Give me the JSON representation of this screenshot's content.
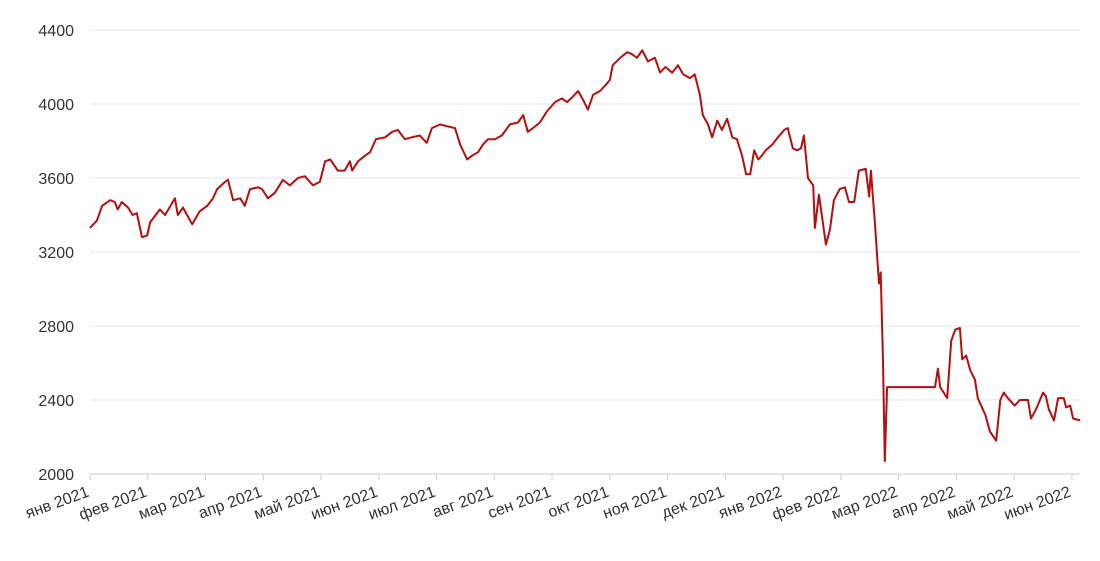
{
  "chart_data": {
    "type": "line",
    "xlim": [
      0,
      17.14
    ],
    "xticks": [
      {
        "value": 0,
        "label": "янв 2021"
      },
      {
        "value": 1,
        "label": "фев 2021"
      },
      {
        "value": 2,
        "label": "мар 2021"
      },
      {
        "value": 3,
        "label": "апр 2021"
      },
      {
        "value": 4,
        "label": "май 2021"
      },
      {
        "value": 5,
        "label": "июн 2021"
      },
      {
        "value": 6,
        "label": "июл 2021"
      },
      {
        "value": 7,
        "label": "авг 2021"
      },
      {
        "value": 8,
        "label": "сен 2021"
      },
      {
        "value": 9,
        "label": "окт 2021"
      },
      {
        "value": 10,
        "label": "ноя 2021"
      },
      {
        "value": 11,
        "label": "дек 2021"
      },
      {
        "value": 12,
        "label": "янв 2022"
      },
      {
        "value": 13,
        "label": "фев 2022"
      },
      {
        "value": 14,
        "label": "мар 2022"
      },
      {
        "value": 15,
        "label": "апр 2022"
      },
      {
        "value": 16,
        "label": "май 2022"
      },
      {
        "value": 17,
        "label": "июн 2022"
      }
    ],
    "ylim": [
      2000,
      4400
    ],
    "yticks": [
      2000,
      2400,
      2800,
      3200,
      3600,
      4000,
      4400
    ],
    "grid": true,
    "series": [
      {
        "color": "#b30f0f",
        "x": [
          0,
          0.12,
          0.21,
          0.35,
          0.43,
          0.48,
          0.55,
          0.66,
          0.74,
          0.81,
          0.9,
          0.99,
          1.04,
          1.21,
          1.3,
          1.47,
          1.52,
          1.61,
          1.77,
          1.9,
          2.03,
          2.13,
          2.2,
          2.34,
          2.39,
          2.48,
          2.6,
          2.68,
          2.77,
          2.91,
          2.98,
          3.08,
          3.2,
          3.34,
          3.46,
          3.6,
          3.72,
          3.86,
          3.98,
          4.07,
          4.16,
          4.29,
          4.41,
          4.5,
          4.54,
          4.64,
          4.76,
          4.85,
          4.95,
          5.11,
          5.23,
          5.33,
          5.45,
          5.57,
          5.71,
          5.83,
          5.92,
          6.06,
          6.18,
          6.32,
          6.41,
          6.53,
          6.61,
          6.72,
          6.8,
          6.89,
          7.01,
          7.13,
          7.27,
          7.41,
          7.5,
          7.58,
          7.67,
          7.79,
          7.91,
          8.05,
          8.17,
          8.26,
          8.36,
          8.45,
          8.54,
          8.62,
          8.71,
          8.83,
          8.92,
          9.0,
          9.05,
          9.18,
          9.3,
          9.38,
          9.47,
          9.56,
          9.66,
          9.78,
          9.87,
          9.96,
          10.08,
          10.18,
          10.27,
          10.39,
          10.47,
          10.56,
          10.61,
          10.7,
          10.77,
          10.86,
          10.94,
          11.03,
          11.12,
          11.2,
          11.29,
          11.36,
          11.43,
          11.5,
          11.57,
          11.63,
          11.7,
          11.81,
          11.91,
          12.02,
          12.08,
          12.17,
          12.24,
          12.31,
          12.36,
          12.43,
          12.52,
          12.55,
          12.62,
          12.67,
          12.74,
          12.81,
          12.88,
          12.98,
          13.07,
          13.14,
          13.23,
          13.31,
          13.43,
          13.49,
          13.52,
          13.59,
          13.66,
          13.69,
          13.73,
          13.76,
          13.8,
          14.63,
          14.68,
          14.72,
          14.84,
          14.91,
          14.98,
          15.06,
          15.1,
          15.17,
          15.24,
          15.32,
          15.37,
          15.5,
          15.58,
          15.69,
          15.76,
          15.82,
          15.89,
          16.01,
          16.1,
          16.24,
          16.29,
          16.38,
          16.5,
          16.55,
          16.6,
          16.69,
          16.76,
          16.86,
          16.9,
          16.97,
          17.02,
          17.14
        ],
        "values": [
          3330,
          3370,
          3450,
          3480,
          3470,
          3430,
          3470,
          3440,
          3400,
          3410,
          3280,
          3290,
          3360,
          3430,
          3400,
          3490,
          3400,
          3440,
          3350,
          3420,
          3450,
          3490,
          3540,
          3580,
          3590,
          3480,
          3490,
          3450,
          3540,
          3550,
          3540,
          3490,
          3520,
          3590,
          3560,
          3600,
          3610,
          3560,
          3580,
          3690,
          3700,
          3640,
          3640,
          3690,
          3640,
          3690,
          3720,
          3740,
          3810,
          3820,
          3850,
          3860,
          3810,
          3820,
          3830,
          3790,
          3870,
          3890,
          3880,
          3870,
          3780,
          3700,
          3720,
          3740,
          3780,
          3810,
          3810,
          3830,
          3890,
          3900,
          3940,
          3850,
          3870,
          3900,
          3960,
          4010,
          4030,
          4010,
          4040,
          4070,
          4020,
          3970,
          4050,
          4070,
          4100,
          4130,
          4210,
          4250,
          4280,
          4270,
          4250,
          4290,
          4230,
          4250,
          4170,
          4200,
          4170,
          4210,
          4160,
          4140,
          4160,
          4050,
          3940,
          3890,
          3820,
          3910,
          3860,
          3920,
          3820,
          3810,
          3720,
          3620,
          3620,
          3750,
          3700,
          3720,
          3750,
          3780,
          3820,
          3860,
          3870,
          3760,
          3750,
          3760,
          3830,
          3600,
          3560,
          3330,
          3510,
          3400,
          3240,
          3320,
          3480,
          3540,
          3550,
          3470,
          3470,
          3640,
          3650,
          3500,
          3640,
          3350,
          3030,
          3090,
          2610,
          2070,
          2470,
          2470,
          2570,
          2470,
          2410,
          2720,
          2780,
          2790,
          2620,
          2640,
          2560,
          2510,
          2410,
          2320,
          2230,
          2180,
          2400,
          2440,
          2410,
          2370,
          2400,
          2400,
          2300,
          2350,
          2440,
          2420,
          2350,
          2290,
          2410,
          2410,
          2360,
          2370,
          2300,
          2290
        ]
      }
    ]
  }
}
